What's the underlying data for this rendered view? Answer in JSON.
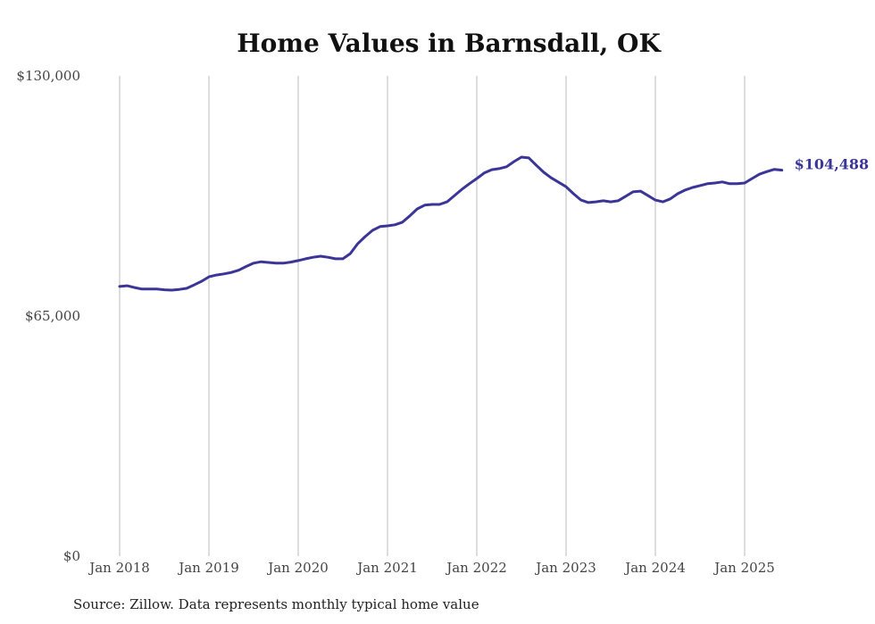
{
  "chart_data": {
    "type": "line",
    "title": "Home Values in Barnsdall, OK",
    "source": "Source: Zillow. Data represents monthly typical home value",
    "xlabel": "",
    "ylabel": "",
    "ylim": [
      0,
      130000
    ],
    "yticks": [
      0,
      65000,
      130000
    ],
    "ytick_labels": [
      "$0",
      "$65,000",
      "$130,000"
    ],
    "xticks": [
      "Jan 2018",
      "Jan 2019",
      "Jan 2020",
      "Jan 2021",
      "Jan 2022",
      "Jan 2023",
      "Jan 2024",
      "Jan 2025"
    ],
    "grid": "vertical",
    "line_color": "#3b3598",
    "end_label": "$104,488",
    "series": [
      {
        "name": "Typical home value",
        "start": "2018-01",
        "frequency": "monthly",
        "values": [
          73000,
          73200,
          72700,
          72300,
          72300,
          72300,
          72100,
          72000,
          72200,
          72500,
          73400,
          74400,
          75600,
          76100,
          76400,
          76800,
          77400,
          78400,
          79300,
          79700,
          79500,
          79300,
          79300,
          79600,
          80000,
          80500,
          80900,
          81200,
          80900,
          80500,
          80500,
          81900,
          84600,
          86500,
          88200,
          89200,
          89400,
          89700,
          90400,
          92100,
          94000,
          95000,
          95200,
          95200,
          95900,
          97600,
          99300,
          100800,
          102200,
          103700,
          104600,
          104900,
          105400,
          106800,
          108000,
          107800,
          105800,
          103900,
          102400,
          101200,
          100000,
          98100,
          96400,
          95700,
          95900,
          96200,
          95900,
          96200,
          97400,
          98600,
          98800,
          97600,
          96400,
          95900,
          96700,
          98100,
          99100,
          99800,
          100300,
          100800,
          101000,
          101300,
          100800,
          100800,
          101000,
          102200,
          103400,
          104100,
          104700,
          104488
        ]
      }
    ]
  }
}
